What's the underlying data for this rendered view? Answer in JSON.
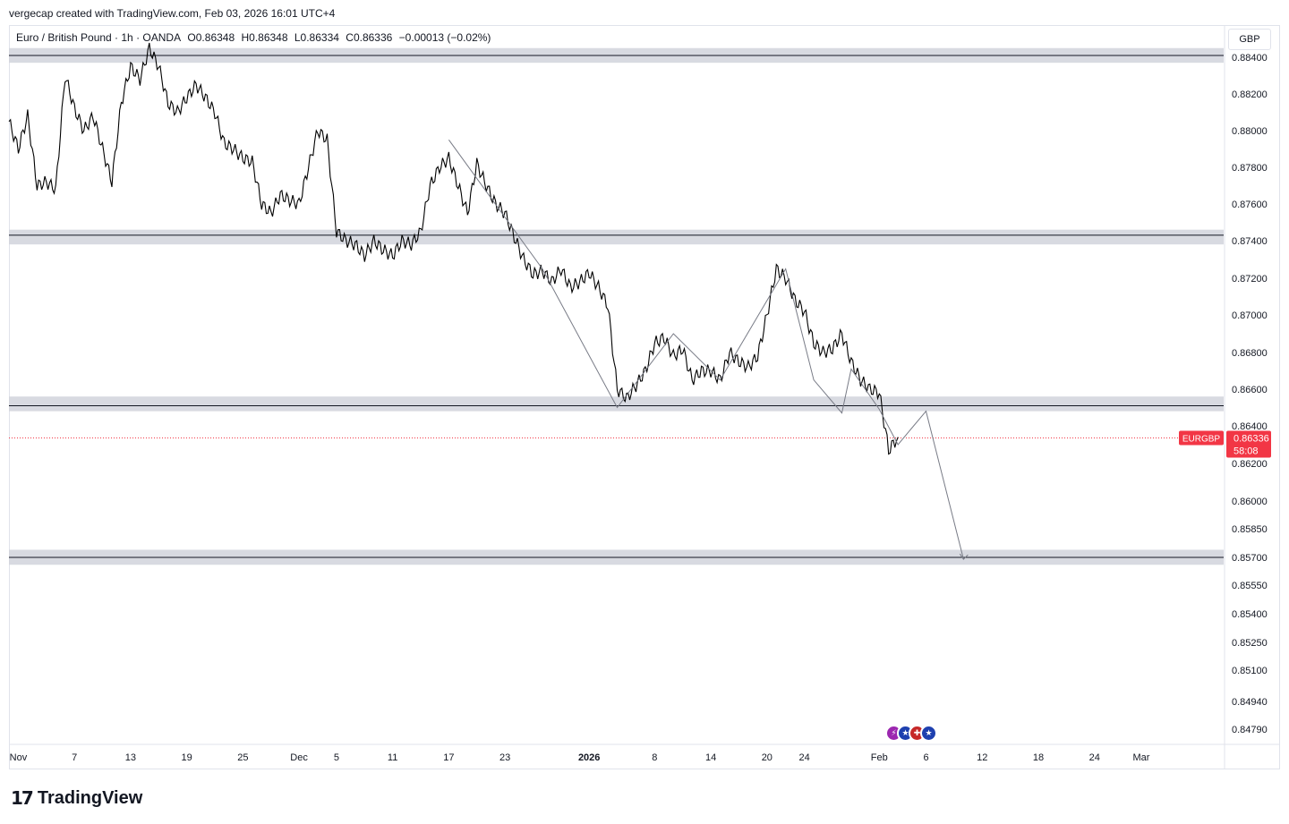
{
  "header": {
    "credit": "vergecap created with TradingView.com, Feb 03, 2026 16:01 UTC+4"
  },
  "legend": {
    "symbol": "Euro / British Pound · 1h · OANDA",
    "open": "O0.86348",
    "high": "H0.86348",
    "low": "L0.86334",
    "close": "C0.86336",
    "change": "−0.00013 (−0.02%)"
  },
  "price_axis": {
    "currency": "GBP"
  },
  "price_tag": {
    "symbol": "EURGBP",
    "price": "0.86336",
    "countdown": "58:08",
    "color": "#f23645"
  },
  "footer": {
    "brand": "TradingView",
    "brand_icon": "tradingview-logo-icon"
  },
  "event_icons": [
    "lightning-icon",
    "eu-flag-icon",
    "uk-flag-icon",
    "eu-flag-icon"
  ],
  "chart_data": {
    "type": "line",
    "title": "Euro / British Pound · 1h · OANDA",
    "ylabel": "GBP",
    "ylim": [
      0.8472,
      0.8855
    ],
    "y_ticks": [
      "0.88400",
      "0.88200",
      "0.88000",
      "0.87800",
      "0.87600",
      "0.87400",
      "0.87200",
      "0.87000",
      "0.86800",
      "0.86600",
      "0.86400",
      "0.86200",
      "0.86000",
      "0.85850",
      "0.85700",
      "0.85550",
      "0.85400",
      "0.85250",
      "0.85100",
      "0.84940",
      "0.84790"
    ],
    "y_tick_values": [
      0.884,
      0.882,
      0.88,
      0.878,
      0.876,
      0.874,
      0.872,
      0.87,
      0.868,
      0.866,
      0.864,
      0.862,
      0.86,
      0.8585,
      0.857,
      0.8555,
      0.854,
      0.8525,
      0.851,
      0.8494,
      0.8479
    ],
    "x_ticks": [
      {
        "label": "Nov",
        "date": "2025-11-01",
        "bold": false
      },
      {
        "label": "7",
        "date": "2025-11-07",
        "bold": false
      },
      {
        "label": "13",
        "date": "2025-11-13",
        "bold": false
      },
      {
        "label": "19",
        "date": "2025-11-19",
        "bold": false
      },
      {
        "label": "25",
        "date": "2025-11-25",
        "bold": false
      },
      {
        "label": "Dec",
        "date": "2025-12-01",
        "bold": false
      },
      {
        "label": "5",
        "date": "2025-12-05",
        "bold": false
      },
      {
        "label": "11",
        "date": "2025-12-11",
        "bold": false
      },
      {
        "label": "17",
        "date": "2025-12-17",
        "bold": false
      },
      {
        "label": "23",
        "date": "2025-12-23",
        "bold": false
      },
      {
        "label": "2026",
        "date": "2026-01-01",
        "bold": true
      },
      {
        "label": "8",
        "date": "2026-01-08",
        "bold": false
      },
      {
        "label": "14",
        "date": "2026-01-14",
        "bold": false
      },
      {
        "label": "20",
        "date": "2026-01-20",
        "bold": false
      },
      {
        "label": "24",
        "date": "2026-01-24",
        "bold": false
      },
      {
        "label": "Feb",
        "date": "2026-02-01",
        "bold": false
      },
      {
        "label": "6",
        "date": "2026-02-06",
        "bold": false
      },
      {
        "label": "12",
        "date": "2026-02-12",
        "bold": false
      },
      {
        "label": "18",
        "date": "2026-02-18",
        "bold": false
      },
      {
        "label": "24",
        "date": "2026-02-24",
        "bold": false
      },
      {
        "label": "Mar",
        "date": "2026-03-01",
        "bold": false
      }
    ],
    "series": [
      {
        "color": "#000000",
        "points": [
          [
            "2025-10-31",
            0.8805
          ],
          [
            "2025-11-01",
            0.879
          ],
          [
            "2025-11-02",
            0.8808
          ],
          [
            "2025-11-03",
            0.877
          ],
          [
            "2025-11-04",
            0.8772
          ],
          [
            "2025-11-05",
            0.8768
          ],
          [
            "2025-11-06",
            0.883
          ],
          [
            "2025-11-07",
            0.8812
          ],
          [
            "2025-11-08",
            0.88
          ],
          [
            "2025-11-09",
            0.8808
          ],
          [
            "2025-11-10",
            0.879
          ],
          [
            "2025-11-11",
            0.8772
          ],
          [
            "2025-11-12",
            0.8815
          ],
          [
            "2025-11-13",
            0.8835
          ],
          [
            "2025-11-14",
            0.8828
          ],
          [
            "2025-11-15",
            0.8845
          ],
          [
            "2025-11-16",
            0.8835
          ],
          [
            "2025-11-17",
            0.8815
          ],
          [
            "2025-11-18",
            0.881
          ],
          [
            "2025-11-19",
            0.8818
          ],
          [
            "2025-11-20",
            0.8825
          ],
          [
            "2025-11-21",
            0.8818
          ],
          [
            "2025-11-22",
            0.881
          ],
          [
            "2025-11-23",
            0.8793
          ],
          [
            "2025-11-24",
            0.879
          ],
          [
            "2025-11-25",
            0.8785
          ],
          [
            "2025-11-26",
            0.8783
          ],
          [
            "2025-11-27",
            0.876
          ],
          [
            "2025-11-28",
            0.8755
          ],
          [
            "2025-11-29",
            0.8765
          ],
          [
            "2025-11-30",
            0.8762
          ],
          [
            "2025-12-01",
            0.876
          ],
          [
            "2025-12-02",
            0.878
          ],
          [
            "2025-12-03",
            0.88
          ],
          [
            "2025-12-04",
            0.8795
          ],
          [
            "2025-12-05",
            0.8745
          ],
          [
            "2025-12-06",
            0.874
          ],
          [
            "2025-12-07",
            0.8738
          ],
          [
            "2025-12-08",
            0.8732
          ],
          [
            "2025-12-09",
            0.874
          ],
          [
            "2025-12-10",
            0.8735
          ],
          [
            "2025-12-11",
            0.8732
          ],
          [
            "2025-12-12",
            0.874
          ],
          [
            "2025-12-13",
            0.8738
          ],
          [
            "2025-12-14",
            0.8745
          ],
          [
            "2025-12-15",
            0.877
          ],
          [
            "2025-12-16",
            0.878
          ],
          [
            "2025-12-17",
            0.8785
          ],
          [
            "2025-12-18",
            0.877
          ],
          [
            "2025-12-19",
            0.8755
          ],
          [
            "2025-12-20",
            0.8782
          ],
          [
            "2025-12-21",
            0.877
          ],
          [
            "2025-12-22",
            0.876
          ],
          [
            "2025-12-23",
            0.8755
          ],
          [
            "2025-12-24",
            0.8742
          ],
          [
            "2025-12-25",
            0.873
          ],
          [
            "2025-12-26",
            0.8722
          ],
          [
            "2025-12-27",
            0.8724
          ],
          [
            "2025-12-28",
            0.8718
          ],
          [
            "2025-12-29",
            0.8725
          ],
          [
            "2025-12-30",
            0.8715
          ],
          [
            "2025-12-31",
            0.8718
          ],
          [
            "2026-01-01",
            0.8723
          ],
          [
            "2026-01-02",
            0.8715
          ],
          [
            "2026-01-03",
            0.8705
          ],
          [
            "2026-01-04",
            0.866
          ],
          [
            "2026-01-05",
            0.8655
          ],
          [
            "2026-01-06",
            0.8662
          ],
          [
            "2026-01-07",
            0.867
          ],
          [
            "2026-01-08",
            0.8685
          ],
          [
            "2026-01-09",
            0.8688
          ],
          [
            "2026-01-10",
            0.8678
          ],
          [
            "2026-01-11",
            0.8682
          ],
          [
            "2026-01-12",
            0.8665
          ],
          [
            "2026-01-13",
            0.867
          ],
          [
            "2026-01-14",
            0.867
          ],
          [
            "2026-01-15",
            0.8665
          ],
          [
            "2026-01-16",
            0.868
          ],
          [
            "2026-01-17",
            0.8675
          ],
          [
            "2026-01-18",
            0.8672
          ],
          [
            "2026-01-19",
            0.8678
          ],
          [
            "2026-01-20",
            0.87
          ],
          [
            "2026-01-21",
            0.8725
          ],
          [
            "2026-01-22",
            0.872
          ],
          [
            "2026-01-23",
            0.8708
          ],
          [
            "2026-01-24",
            0.8702
          ],
          [
            "2026-01-25",
            0.8685
          ],
          [
            "2026-01-26",
            0.868
          ],
          [
            "2026-01-27",
            0.8682
          ],
          [
            "2026-01-28",
            0.869
          ],
          [
            "2026-01-29",
            0.8675
          ],
          [
            "2026-01-30",
            0.8665
          ],
          [
            "2026-01-31",
            0.866
          ],
          [
            "2026-02-01",
            0.8658
          ],
          [
            "2026-02-02",
            0.8627
          ],
          [
            "2026-02-03",
            0.8634
          ]
        ]
      },
      {
        "color": "#787b86",
        "points": [
          [
            "2025-12-17",
            0.8795
          ],
          [
            "2025-12-27",
            0.8725
          ],
          [
            "2026-01-04",
            0.865
          ],
          [
            "2026-01-10",
            0.869
          ],
          [
            "2026-01-15",
            0.8665
          ],
          [
            "2026-01-22",
            0.8725
          ],
          [
            "2026-01-25",
            0.8665
          ],
          [
            "2026-01-28",
            0.8647
          ],
          [
            "2026-01-29",
            0.8671
          ],
          [
            "2026-02-01",
            0.8649
          ],
          [
            "2026-02-03",
            0.863
          ],
          [
            "2026-02-04",
            0.8636
          ],
          [
            "2026-02-06",
            0.8648
          ],
          [
            "2026-02-10",
            0.8569
          ]
        ]
      }
    ],
    "zones": [
      {
        "low": 0.8837,
        "high": 0.8845,
        "line": 0.8841
      },
      {
        "low": 0.8738,
        "high": 0.8746,
        "line": 0.8743
      },
      {
        "low": 0.8648,
        "high": 0.8656,
        "line": 0.8651
      },
      {
        "low": 0.8566,
        "high": 0.8574,
        "line": 0.857
      }
    ],
    "current_price": 0.86336,
    "grid": false
  }
}
